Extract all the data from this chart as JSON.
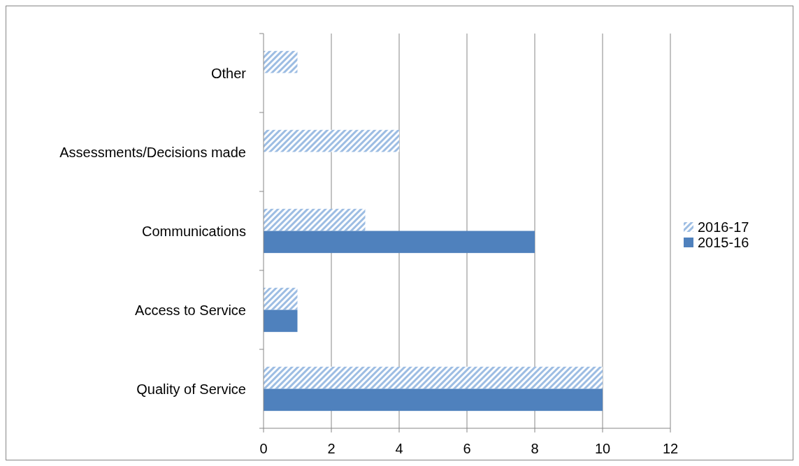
{
  "chart_data": {
    "type": "bar",
    "orientation": "horizontal",
    "categories": [
      "Other",
      "Assessments/Decisions made",
      "Communications",
      "Access to Service",
      "Quality of Service"
    ],
    "series": [
      {
        "name": "2016-17",
        "color": "#9dbde3",
        "values": [
          1,
          4,
          3,
          1,
          10
        ]
      },
      {
        "name": "2015-16",
        "color": "#4f81bd",
        "values": [
          0,
          0,
          8,
          1,
          10
        ]
      }
    ],
    "xlim": [
      0,
      12
    ],
    "xticks": [
      0,
      2,
      4,
      6,
      8,
      10,
      12
    ],
    "grid": "x",
    "legend": "right"
  }
}
